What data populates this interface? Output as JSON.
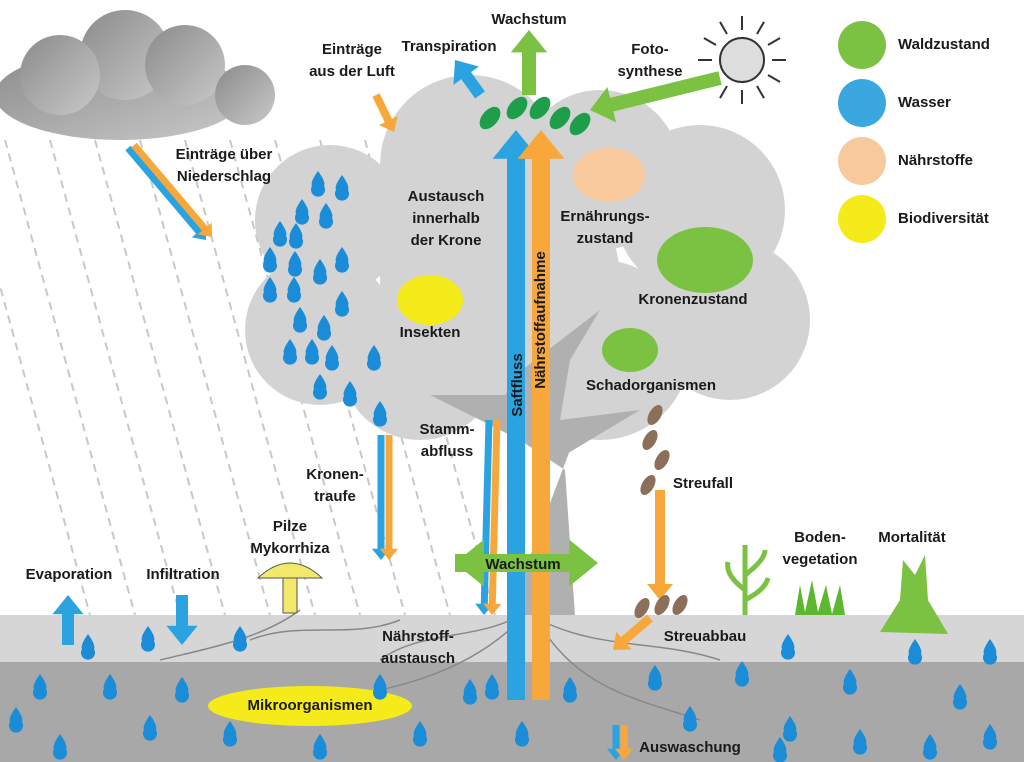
{
  "legend": {
    "items": [
      {
        "label": "Waldzustand"
      },
      {
        "label": "Wasser"
      },
      {
        "label": "Nährstoffe"
      },
      {
        "label": "Biodiversität"
      }
    ]
  },
  "labels": [
    {
      "lines": [
        "Wachstum"
      ]
    },
    {
      "lines": [
        "Transpiration"
      ]
    },
    {
      "lines": [
        "Einträge",
        "aus der Luft"
      ]
    },
    {
      "lines": [
        "Foto-",
        "synthese"
      ]
    },
    {
      "lines": [
        "Einträge über",
        "Niederschlag"
      ]
    },
    {
      "lines": [
        "Austausch",
        "innerhalb",
        "der Krone"
      ]
    },
    {
      "lines": [
        "Ernährungs-",
        "zustand"
      ]
    },
    {
      "lines": [
        "Kronenzustand"
      ]
    },
    {
      "lines": [
        "Insekten"
      ]
    },
    {
      "lines": [
        "Schadorganismen"
      ]
    },
    {
      "lines": [
        "Saftfluss"
      ]
    },
    {
      "lines": [
        "Nährstoffaufnahme"
      ]
    },
    {
      "lines": [
        "Stamm-",
        "abfluss"
      ]
    },
    {
      "lines": [
        "Kronen-",
        "traufe"
      ]
    },
    {
      "lines": [
        "Streufall"
      ]
    },
    {
      "lines": [
        "Pilze",
        "Mykorrhiza"
      ]
    },
    {
      "lines": [
        "Boden-",
        "vegetation"
      ]
    },
    {
      "lines": [
        "Mortalität"
      ]
    },
    {
      "lines": [
        "Evaporation"
      ]
    },
    {
      "lines": [
        "Infiltration"
      ]
    },
    {
      "lines": [
        "Wachstum"
      ]
    },
    {
      "lines": [
        "Nährstoff-",
        "austausch"
      ]
    },
    {
      "lines": [
        "Streuabbau"
      ]
    },
    {
      "lines": [
        "Mikroorganismen"
      ]
    },
    {
      "lines": [
        "Auswaschung"
      ]
    }
  ]
}
